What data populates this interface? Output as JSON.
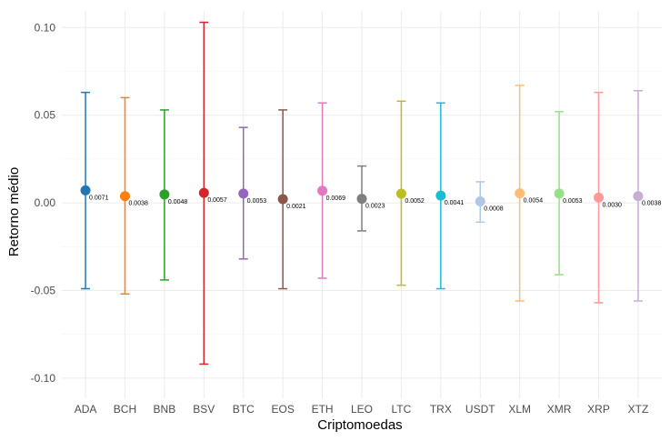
{
  "chart_data": {
    "type": "scatter",
    "subtype": "point-with-error-bars",
    "title": "",
    "xlabel": "Criptomoedas",
    "ylabel": "Retorno médio",
    "ylim": [
      -0.1,
      0.1
    ],
    "yticks": [
      -0.1,
      -0.05,
      0.0,
      0.05,
      0.1
    ],
    "ytick_labels": [
      "-0.10",
      "-0.05",
      "0.00",
      "0.05",
      "0.10"
    ],
    "grid": true,
    "legend": "none",
    "categories": [
      "ADA",
      "BCH",
      "BNB",
      "BSV",
      "BTC",
      "EOS",
      "ETH",
      "LEO",
      "LTC",
      "TRX",
      "USDT",
      "XLM",
      "XMR",
      "XRP",
      "XTZ"
    ],
    "values": [
      0.0071,
      0.0038,
      0.0048,
      0.0057,
      0.0053,
      0.0021,
      0.0069,
      0.0023,
      0.0052,
      0.0041,
      0.0008,
      0.0054,
      0.0053,
      0.003,
      0.0038
    ],
    "value_labels": [
      "0.0071",
      "0.0038",
      "0.0048",
      "0.0057",
      "0.0053",
      "0.0021",
      "0.0069",
      "0.0023",
      "0.0052",
      "0.0041",
      "0.0008",
      "0.0054",
      "0.0053",
      "0.0030",
      "0.0038"
    ],
    "upper": [
      0.063,
      0.06,
      0.053,
      0.103,
      0.043,
      0.053,
      0.057,
      0.021,
      0.058,
      0.057,
      0.012,
      0.067,
      0.052,
      0.063,
      0.064
    ],
    "lower": [
      -0.049,
      -0.052,
      -0.044,
      -0.092,
      -0.032,
      -0.049,
      -0.043,
      -0.016,
      -0.047,
      -0.049,
      -0.011,
      -0.056,
      -0.041,
      -0.057,
      -0.056
    ],
    "colors": [
      "#1f77b4",
      "#ff7f0e",
      "#2ca02c",
      "#d62728",
      "#9467bd",
      "#8c564b",
      "#e377c2",
      "#7f7f7f",
      "#bcbd22",
      "#17becf",
      "#aec7e8",
      "#ffbb78",
      "#98df8a",
      "#ff9896",
      "#c5b0d5"
    ]
  }
}
